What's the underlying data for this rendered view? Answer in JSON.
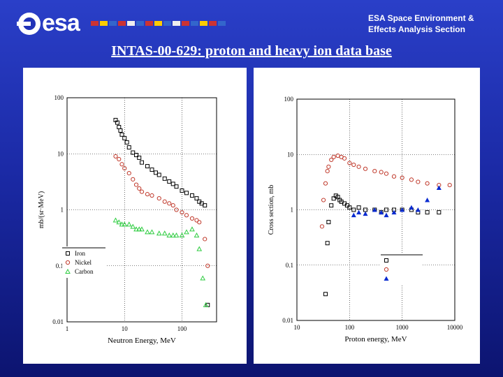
{
  "header": {
    "logo_text": "esa",
    "section_line1": "ESA Space Environment &",
    "section_line2": "Effects Analysis Section",
    "title": "INTAS-00-629: proton and heavy ion data base"
  },
  "colors": {
    "background_top": "#2a3fc8",
    "background_bottom": "#0c1470",
    "iron": "#000000",
    "nickel": "#c0392b",
    "carbon": "#2ecc40",
    "blue_series": "#0a2bd0"
  },
  "chart_data": [
    {
      "type": "scatter",
      "title": "",
      "xlabel": "Neutron Energy, MeV",
      "ylabel": "mb/(sr·MeV)",
      "xscale": "log",
      "yscale": "log",
      "xlim": [
        1,
        400
      ],
      "ylim": [
        0.01,
        100
      ],
      "grid": true,
      "legend": "bottom-left",
      "x_ticks": [
        "1",
        "10",
        "100"
      ],
      "y_ticks": [
        "0.01",
        "0.1",
        "1",
        "10",
        "100"
      ],
      "series": [
        {
          "name": "Iron",
          "marker": "square",
          "x": [
            7,
            7.5,
            8,
            8.5,
            9,
            10,
            11,
            12,
            14,
            16,
            18,
            20,
            25,
            30,
            35,
            40,
            50,
            60,
            70,
            80,
            100,
            120,
            150,
            180,
            200,
            220,
            250,
            280
          ],
          "y": [
            40,
            36,
            30,
            26,
            22,
            19,
            16,
            13,
            10.5,
            9.5,
            8.5,
            7,
            6,
            5.2,
            4.6,
            4.2,
            3.6,
            3.2,
            2.9,
            2.6,
            2.2,
            2.0,
            1.8,
            1.6,
            1.4,
            1.3,
            1.2,
            0.02
          ]
        },
        {
          "name": "Nickel",
          "marker": "circle",
          "x": [
            7,
            8,
            9,
            10,
            12,
            14,
            16,
            18,
            20,
            25,
            30,
            40,
            50,
            60,
            70,
            80,
            100,
            120,
            150,
            180,
            200,
            250,
            280
          ],
          "y": [
            9,
            8,
            6.5,
            5.5,
            4.5,
            3.5,
            2.8,
            2.4,
            2.1,
            1.9,
            1.8,
            1.6,
            1.4,
            1.3,
            1.2,
            1.0,
            0.9,
            0.8,
            0.7,
            0.65,
            0.6,
            0.3,
            0.1
          ]
        },
        {
          "name": "Carbon",
          "marker": "triangle",
          "x": [
            7,
            8,
            9,
            10,
            12,
            14,
            16,
            18,
            20,
            25,
            30,
            40,
            50,
            60,
            70,
            80,
            100,
            120,
            150,
            180,
            200,
            230,
            260
          ],
          "y": [
            0.65,
            0.6,
            0.55,
            0.55,
            0.55,
            0.5,
            0.45,
            0.45,
            0.45,
            0.4,
            0.4,
            0.38,
            0.38,
            0.35,
            0.35,
            0.35,
            0.35,
            0.4,
            0.45,
            0.35,
            0.2,
            0.06,
            0.02
          ]
        }
      ]
    },
    {
      "type": "scatter",
      "title": "",
      "xlabel": "Proton energy, MeV",
      "ylabel": "Cross section, mb",
      "xscale": "log",
      "yscale": "log",
      "xlim": [
        10,
        10000
      ],
      "ylim": [
        0.01,
        100
      ],
      "grid": true,
      "legend": "bottom-right",
      "x_ticks": [
        "10",
        "100",
        "1000",
        "10000"
      ],
      "y_ticks": [
        "0.01",
        "0.1",
        "1",
        "10",
        "100"
      ],
      "series": [
        {
          "name": "",
          "marker": "square",
          "x": [
            35,
            38,
            40,
            45,
            50,
            55,
            60,
            65,
            70,
            80,
            90,
            100,
            120,
            150,
            200,
            300,
            400,
            500,
            700,
            1000,
            1500,
            2000,
            3000,
            5000
          ],
          "y": [
            0.03,
            0.25,
            0.6,
            1.2,
            1.6,
            1.8,
            1.7,
            1.5,
            1.4,
            1.3,
            1.2,
            1.1,
            1.0,
            1.1,
            1.0,
            1.0,
            0.9,
            1.0,
            1.0,
            1.0,
            1.0,
            0.9,
            0.9,
            0.9
          ]
        },
        {
          "name": "",
          "marker": "circle",
          "x": [
            30,
            32,
            35,
            38,
            40,
            45,
            50,
            60,
            70,
            80,
            100,
            120,
            150,
            200,
            300,
            400,
            500,
            700,
            1000,
            1500,
            2000,
            3000,
            5000,
            8000
          ],
          "y": [
            0.5,
            1.5,
            3,
            5,
            6,
            8,
            9,
            9.5,
            9,
            8.5,
            7,
            6.5,
            6,
            5.5,
            5,
            4.8,
            4.5,
            4,
            3.8,
            3.5,
            3.2,
            3.0,
            2.8,
            2.8
          ]
        },
        {
          "name": "",
          "marker": "triangle",
          "x": [
            120,
            150,
            200,
            300,
            400,
            500,
            700,
            1000,
            1500,
            2000,
            3000,
            5000
          ],
          "y": [
            0.8,
            0.9,
            0.85,
            1.0,
            0.9,
            0.8,
            0.9,
            1.0,
            1.1,
            1.0,
            1.5,
            2.5
          ]
        }
      ]
    }
  ]
}
